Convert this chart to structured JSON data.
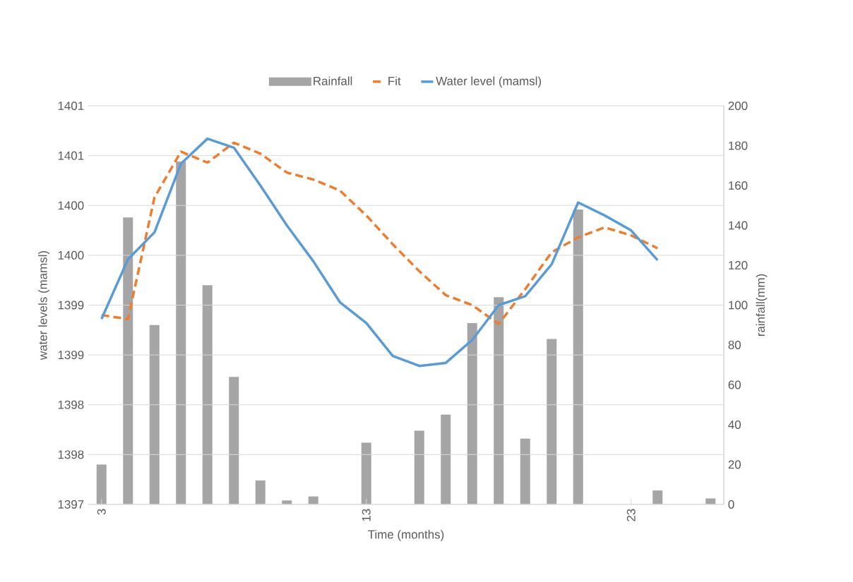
{
  "chart_data": {
    "type": "bar",
    "xlabel": "Time (months)",
    "ylabel": "water levels (mamsl)",
    "y2label": "rainfall(mm)",
    "x": [
      3,
      4,
      5,
      6,
      7,
      8,
      9,
      10,
      11,
      12,
      13,
      14,
      15,
      16,
      17,
      18,
      19,
      20,
      21,
      22,
      23,
      24,
      25,
      26
    ],
    "xlim": [
      2.5,
      26.5
    ],
    "xticks": [
      3,
      13,
      23
    ],
    "ylim": [
      1397,
      1401
    ],
    "yticks": [
      1397,
      {
        "value": 1397.5,
        "label": "1398"
      },
      1398,
      {
        "value": 1398.5,
        "label": "1399"
      },
      1399,
      {
        "value": 1399.5,
        "label": "1400"
      },
      1400,
      {
        "value": 1400.5,
        "label": "1401"
      },
      1401
    ],
    "y2lim": [
      0,
      200
    ],
    "y2ticks": [
      0,
      20,
      40,
      60,
      80,
      100,
      120,
      140,
      160,
      180,
      200
    ],
    "grid": "y",
    "legend": "top",
    "marker": "none",
    "series": [
      {
        "name": "Rainfall",
        "axis": "y2",
        "color": "#a5a5a5",
        "values": [
          20,
          144,
          90,
          172,
          110,
          64,
          12,
          2,
          4,
          0,
          31,
          0,
          37,
          45,
          91,
          104,
          33,
          83,
          148,
          0,
          0,
          7,
          0,
          3
        ]
      },
      {
        "name": "Fit",
        "type": "line",
        "line_style": "dashed",
        "color": "#ed7d31",
        "x": [
          3,
          4,
          5,
          6,
          7,
          8,
          9,
          10,
          11,
          12,
          13,
          14,
          15,
          16,
          17,
          18,
          19,
          20,
          21,
          22,
          23,
          24
        ],
        "values": [
          1398.9,
          1398.86,
          1400.08,
          1400.54,
          1400.43,
          1400.63,
          1400.52,
          1400.33,
          1400.26,
          1400.15,
          1399.9,
          1399.61,
          1399.34,
          1399.1,
          1399.0,
          1398.81,
          1399.16,
          1399.53,
          1399.68,
          1399.78,
          1399.7,
          1399.57
        ]
      },
      {
        "name": "Water level (mamsl)",
        "type": "line",
        "line_style": "solid",
        "color": "#5b9bd5",
        "x": [
          3,
          4,
          5,
          6,
          7,
          8,
          9,
          10,
          11,
          12,
          13,
          14,
          15,
          16,
          17,
          18,
          19,
          20,
          21,
          22,
          23,
          24
        ],
        "values": [
          1398.86,
          1399.46,
          1399.73,
          1400.42,
          1400.67,
          1400.58,
          1400.2,
          1399.8,
          1399.44,
          1399.03,
          1398.82,
          1398.49,
          1398.39,
          1398.42,
          1398.65,
          1399.0,
          1399.09,
          1399.41,
          1400.03,
          1399.9,
          1399.75,
          1399.45
        ]
      }
    ]
  }
}
